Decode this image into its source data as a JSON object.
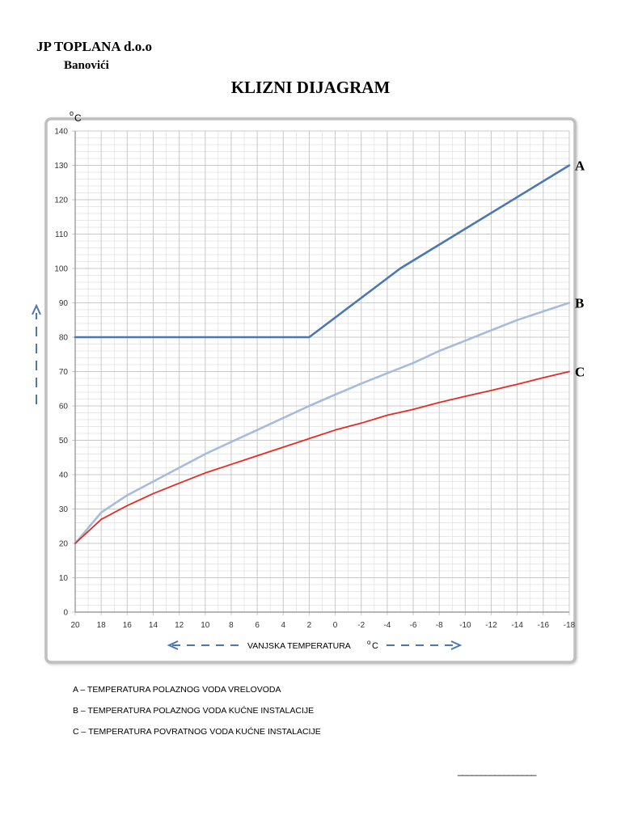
{
  "header": {
    "company": "JP TOPLANA d.o.o",
    "city": "Banovići"
  },
  "chart_data": {
    "type": "line",
    "title": "KLIZNI DIJAGRAM",
    "ylabel_base": "o",
    "ylabel_unit": "C",
    "xlabel": "VANJSKA TEMPERATURA",
    "xlabel_unit_sup": "o",
    "xlabel_unit": "C",
    "xlim": [
      20,
      -18
    ],
    "ylim": [
      0,
      140
    ],
    "x_ticks": [
      20,
      18,
      16,
      14,
      12,
      10,
      8,
      6,
      4,
      2,
      0,
      -2,
      -4,
      -6,
      -8,
      -10,
      -12,
      -14,
      -16,
      -18
    ],
    "y_ticks": [
      0,
      10,
      20,
      30,
      40,
      50,
      60,
      70,
      80,
      90,
      100,
      110,
      120,
      130,
      140
    ],
    "grid": true,
    "series": [
      {
        "name": "A",
        "color": "#4a78b3",
        "x": [
          20,
          2,
          -5,
          -18
        ],
        "y": [
          80,
          80,
          100,
          130
        ]
      },
      {
        "name": "B",
        "color": "#a6bcdc",
        "x": [
          20,
          18,
          16,
          14,
          12,
          10,
          8,
          6,
          4,
          2,
          0,
          -2,
          -4,
          -6,
          -8,
          -10,
          -12,
          -14,
          -16,
          -18
        ],
        "y": [
          20,
          29,
          34,
          38,
          42,
          46,
          49.5,
          53,
          56.5,
          60,
          63.3,
          66.5,
          69.5,
          72.5,
          76,
          79,
          82,
          85,
          87.5,
          90
        ]
      },
      {
        "name": "C",
        "color": "#e52b24",
        "x": [
          20,
          18,
          16,
          14,
          12,
          10,
          8,
          6,
          4,
          2,
          0,
          -2,
          -4,
          -6,
          -8,
          -10,
          -12,
          -14,
          -16,
          -18
        ],
        "y": [
          20,
          27,
          31,
          34.5,
          37.5,
          40.5,
          43,
          45.5,
          48,
          50.5,
          53,
          55,
          57.3,
          59,
          61,
          62.8,
          64.5,
          66.3,
          68.2,
          70
        ]
      }
    ]
  },
  "legend": {
    "a": "A – TEMPERATURA POLAZNOG VODA VRELOVODA",
    "b": "B – TEMPERATURA POLAZNOG VODA KUĆNE INSTALACIJE",
    "c": "C – TEMPERATURA POVRATNOG VODA KUĆNE INSTALACIJE"
  },
  "signature_line": "_________________",
  "colors": {
    "arrow": "#4a78b3",
    "frame": "#bfbfbf",
    "grid": "#c8c8c8"
  }
}
